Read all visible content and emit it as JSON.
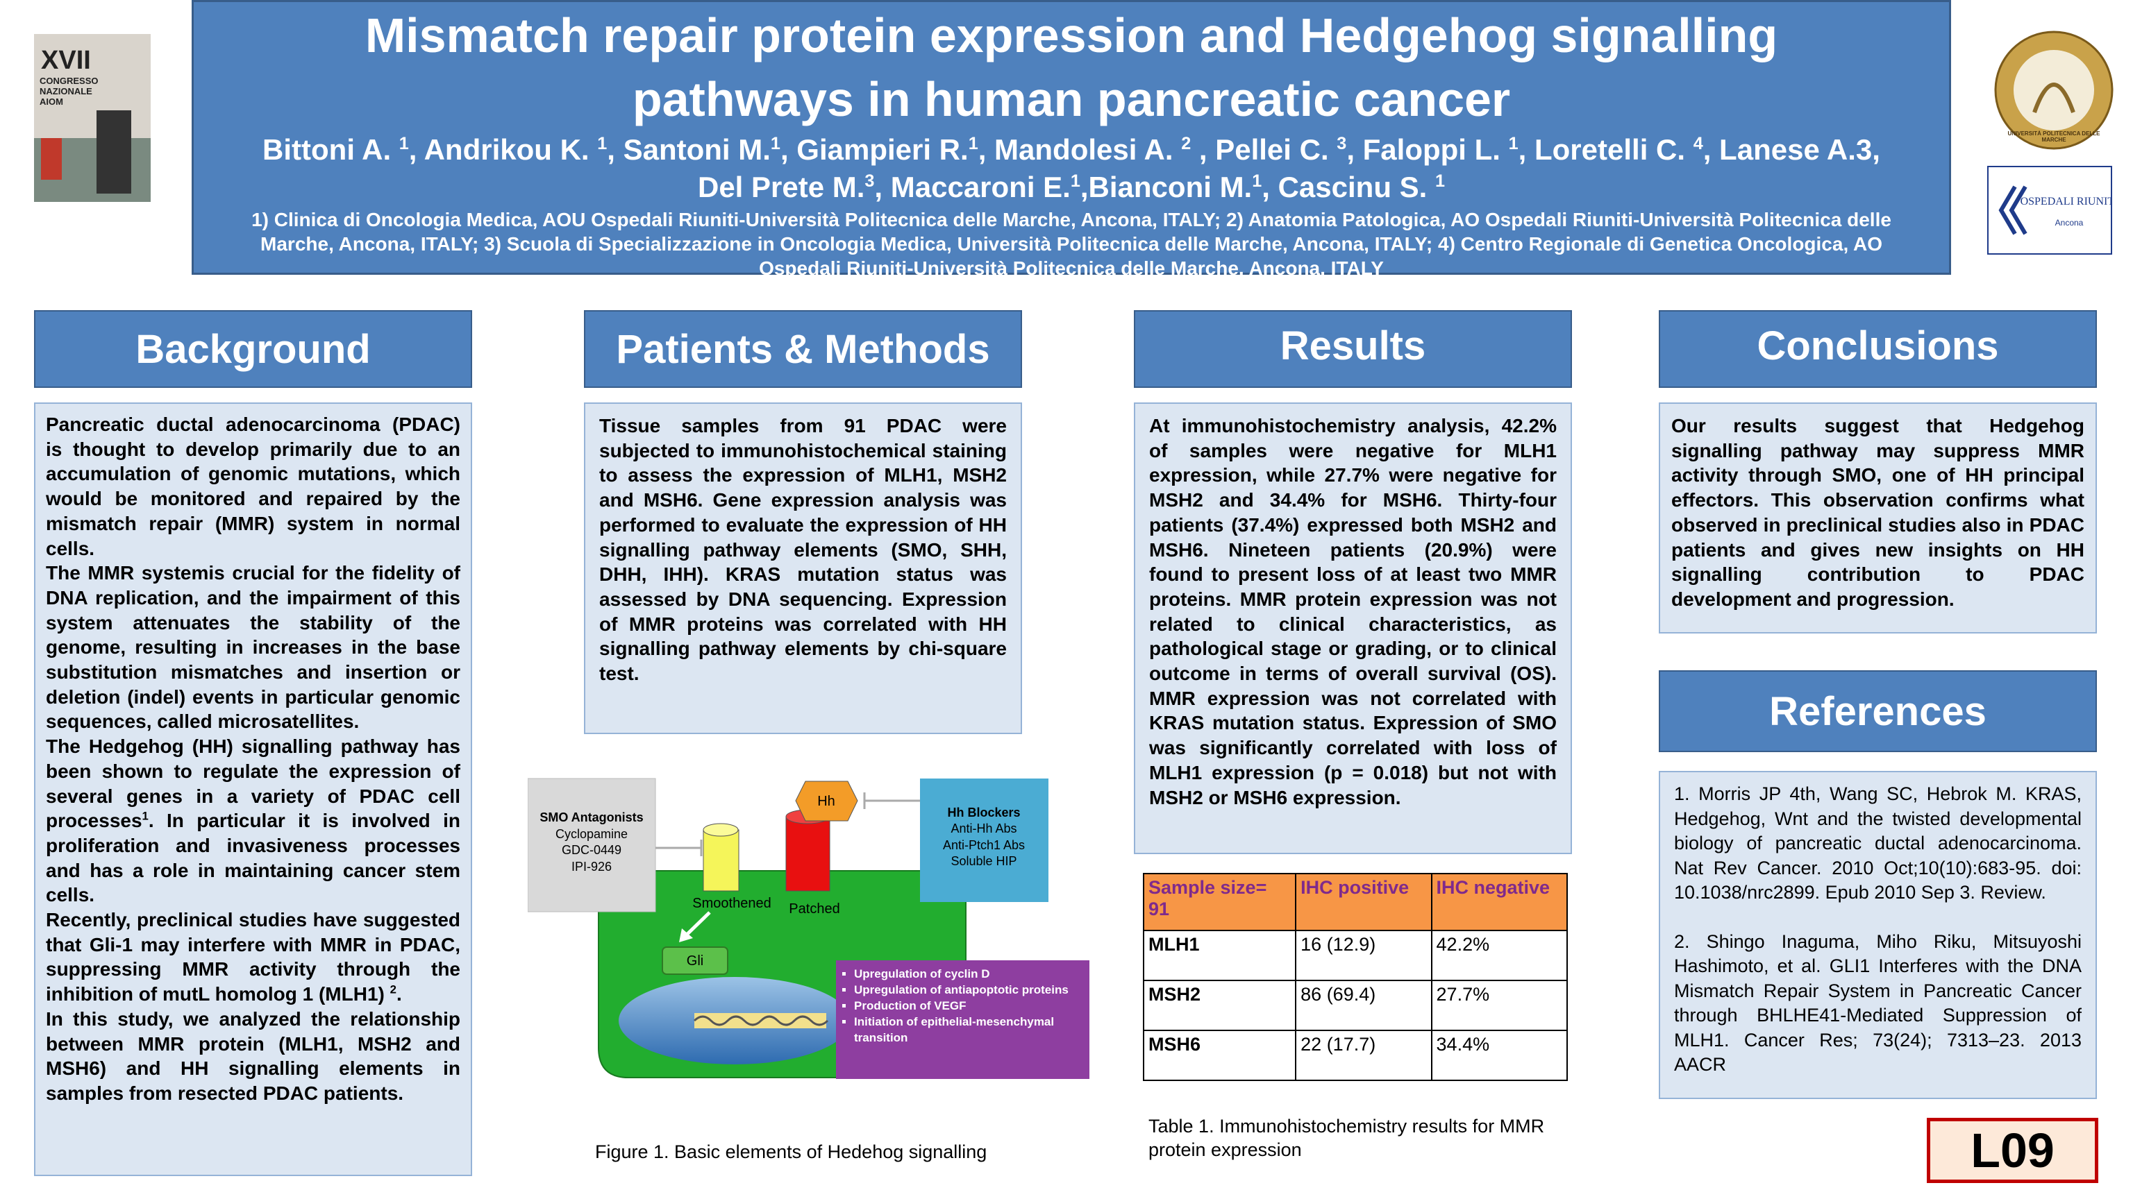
{
  "header": {
    "title": "Mismatch repair protein expression and Hedgehog signalling pathways in human pancreatic cancer",
    "authors": [
      "Bittoni A. ",
      {
        "sup": "1"
      },
      ", Andrikou K. ",
      {
        "sup": "1"
      },
      ", Santoni M.",
      {
        "sup": "1"
      },
      ", Giampieri R.",
      {
        "sup": "1"
      },
      ", Mandolesi A. ",
      {
        "sup": "2"
      },
      " , Pellei C. ",
      {
        "sup": "3"
      },
      ", Faloppi L. ",
      {
        "sup": "1"
      },
      ", Loretelli C. ",
      {
        "sup": "4"
      },
      ", Lanese A.3, Del Prete M.",
      {
        "sup": "3"
      },
      ", Maccaroni  E.",
      {
        "sup": "1"
      },
      ",Bianconi M.",
      {
        "sup": "1"
      },
      ", Cascinu S. ",
      {
        "sup": "1"
      }
    ],
    "affiliations": "1) Clinica di Oncologia Medica, AOU Ospedali Riuniti-Università Politecnica delle Marche, Ancona, ITALY;  2) Anatomia Patologica, AO Ospedali Riuniti-Università Politecnica delle Marche, Ancona, ITALY; 3) Scuola di Specializzazione in Oncologia Medica, Università Politecnica delle Marche, Ancona, ITALY; 4) Centro Regionale di Genetica Oncologica, AO Ospedali Riuniti-Università Politecnica delle Marche, Ancona, ITALY",
    "logos": {
      "congress_number": "XVII",
      "congress": "CONGRESSO NAZIONALE AIOM",
      "university": "UNIVERSITÀ POLITECNICA DELLE MARCHE",
      "hospital": "OSPEDALI RIUNITI",
      "hospital_city": "Ancona"
    }
  },
  "background": {
    "heading": "Background",
    "paragraphs": [
      [
        "Pancreatic ductal adenocarcinoma (PDAC) is thought to develop primarily due to an accumulation of genomic mutations, which would be monitored and repaired by the mismatch repair (MMR) system in normal cells."
      ],
      [
        "The MMR systemis crucial for the fidelity of DNA replication, and the impairment of this system attenuates the stability of the genome, resulting in increases in the base substitution mismatches and insertion or deletion (indel) events in particular genomic sequences, called microsatellites."
      ],
      [
        "The Hedgehog (HH) signalling pathway has been shown to regulate the expression of several genes in a variety of PDAC cell processes",
        {
          "sup": "1"
        },
        ". In particular it is involved in proliferation and invasiveness processes and has a role in maintaining cancer stem cells."
      ],
      [
        " Recently, preclinical studies have suggested that Gli-1 may interfere with MMR in PDAC, suppressing MMR activity through the inhibition of mutL homolog 1 (MLH1) ",
        {
          "sup": "2"
        },
        "."
      ],
      [
        "In this study, we analyzed the relationship between MMR protein (MLH1, MSH2 and MSH6) and HH signalling elements in samples from resected PDAC patients."
      ]
    ]
  },
  "methods": {
    "heading": "Patients & Methods",
    "text": "Tissue samples from 91 PDAC were subjected to immunohistochemical staining to assess the expression of MLH1, MSH2 and MSH6. Gene expression analysis was performed to evaluate the expression of HH signalling pathway elements (SMO, SHH, DHH, IHH). KRAS mutation status was assessed by DNA sequencing. Expression of MMR proteins was correlated with HH signalling pathway elements by chi-square test."
  },
  "figure": {
    "smo_antagonists": {
      "title": "SMO Antagonists",
      "items": [
        "Cyclopamine",
        "GDC-0449",
        "IPI-926"
      ]
    },
    "hh": "Hh",
    "hh_blockers": {
      "title": "Hh Blockers",
      "items": [
        "Anti-Hh Abs",
        "Anti-Ptch1 Abs",
        "Soluble HIP"
      ]
    },
    "smoothened": "Smoothened",
    "patched": "Patched",
    "gli": "Gli",
    "effects": [
      "Upregulation of cyclin D",
      "Upregulation of antiapoptotic proteins",
      "Production of VEGF",
      "Initiation of epithelial-mesenchymal transition"
    ],
    "caption": "Figure 1. Basic elements of Hedehog signalling"
  },
  "results": {
    "heading": "Results",
    "text": "At immunohistochemistry analysis, 42.2% of samples were negative for MLH1 expression, while 27.7% were negative for MSH2 and 34.4% for MSH6.  Thirty-four patients (37.4%) expressed both MSH2 and MSH6. Nineteen patients (20.9%) were found to present loss of at least two MMR proteins. MMR protein expression was not related to clinical characteristics, as pathological stage or grading, or to clinical outcome in terms of overall survival (OS). MMR expression was not correlated with KRAS mutation status. Expression of SMO was significantly correlated with loss of MLH1 expression (p = 0.018) but not with MSH2 or MSH6 expression."
  },
  "table": {
    "headers": [
      "Sample size= 91",
      "IHC positive",
      " IHC negative"
    ],
    "rows": [
      [
        "MLH1",
        "16 (12.9)",
        "42.2%"
      ],
      [
        "MSH2",
        "86 (69.4)",
        "27.7%"
      ],
      [
        "MSH6",
        "22 (17.7)",
        " 34.4%"
      ]
    ],
    "caption": "Table 1. Immunohistochemistry results for MMR protein expression"
  },
  "conclusions": {
    "heading": "Conclusions",
    "text": "Our results suggest that Hedgehog signalling pathway may suppress MMR activity through SMO, one of HH principal effectors. This observation confirms what observed in preclinical studies also in PDAC patients and gives new insights on HH signalling contribution to PDAC development and progression."
  },
  "references": {
    "heading": "References",
    "items": [
      "1. Morris JP 4th, Wang SC, Hebrok M. KRAS, Hedgehog, Wnt and the twisted developmental biology of pancreatic ductal adenocarcinoma. Nat Rev Cancer. 2010 Oct;10(10):683-95. doi: 10.1038/nrc2899. Epub 2010 Sep 3. Review.",
      "2. Shingo Inaguma, Miho Riku, Mitsuyoshi Hashimoto, et al. GLI1 Interferes with the DNA Mismatch Repair System in Pancreatic Cancer through BHLHE41-Mediated Suppression of MLH1. Cancer Res; 73(24); 7313–23. 2013 AACR"
    ]
  },
  "badge": "L09"
}
